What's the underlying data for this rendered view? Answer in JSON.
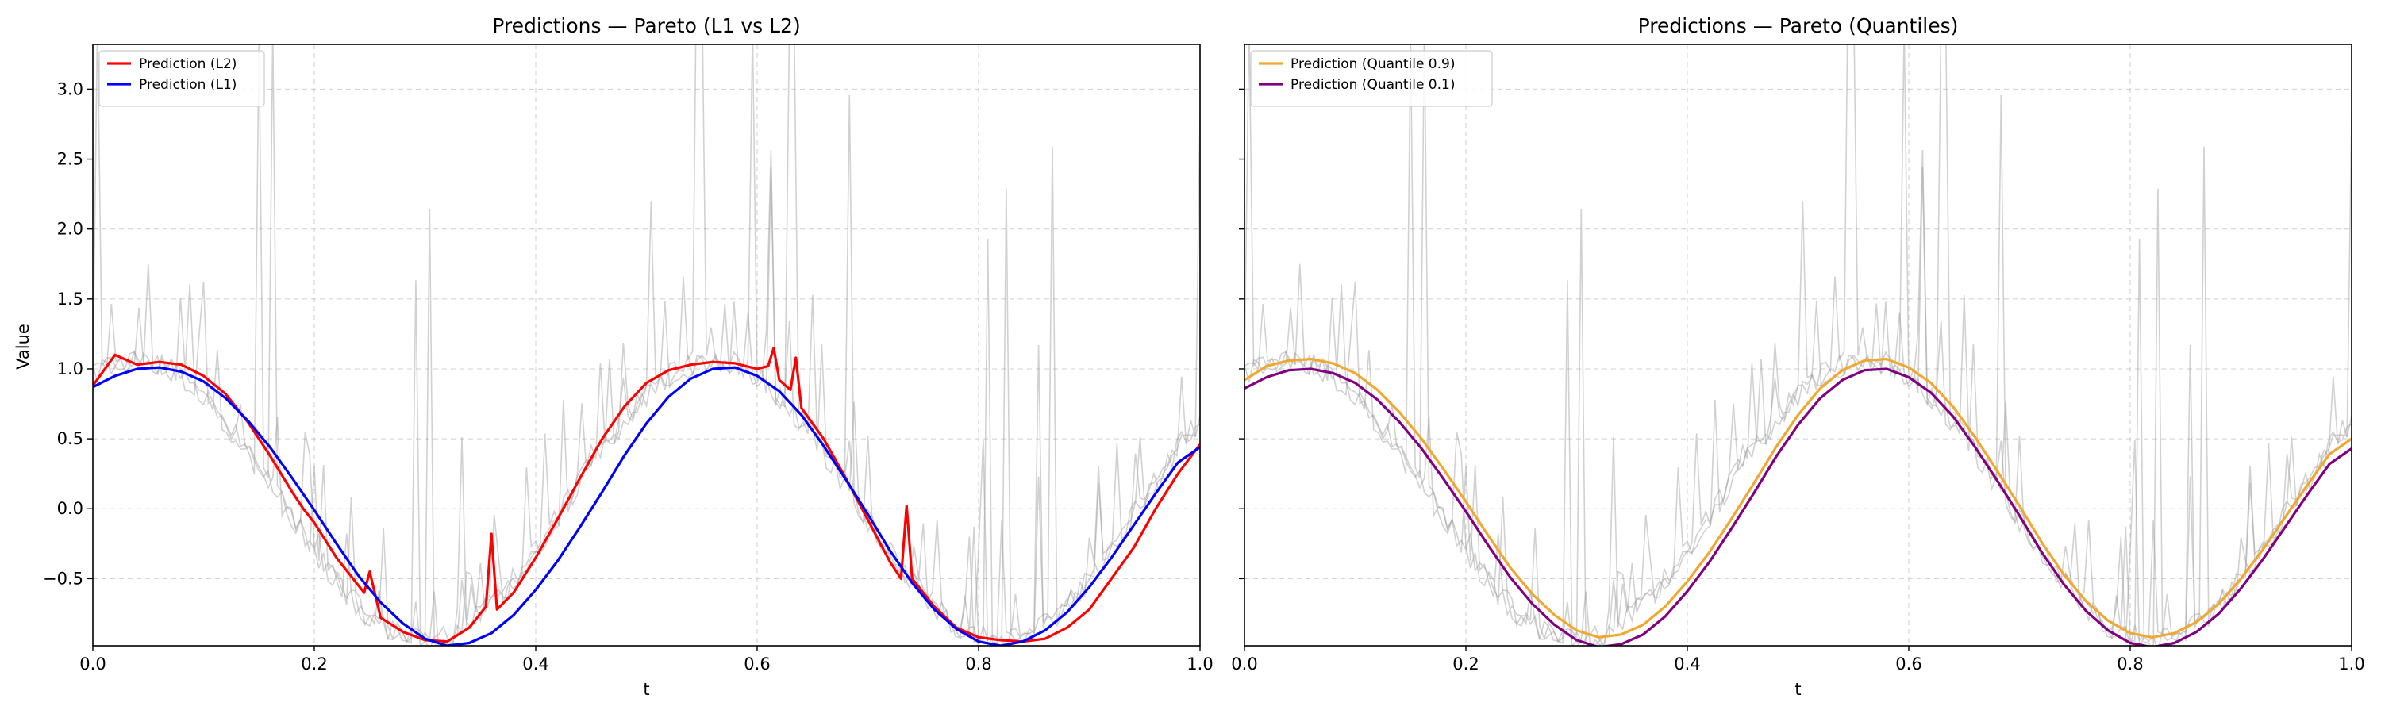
{
  "figure": {
    "ylabel": "Value"
  },
  "chart_data": [
    {
      "type": "line",
      "title": "Predictions — Pareto (L1 vs L2)",
      "xlabel": "t",
      "ylabel": "Value",
      "xlim": [
        0.0,
        1.0
      ],
      "ylim": [
        -0.98,
        3.32
      ],
      "x_ticks": [
        0.0,
        0.2,
        0.4,
        0.6,
        0.8,
        1.0
      ],
      "x_tick_labels": [
        "0.0",
        "0.2",
        "0.4",
        "0.6",
        "0.8",
        "1.0"
      ],
      "y_ticks": [
        -0.5,
        0.0,
        0.5,
        1.0,
        1.5,
        2.0,
        2.5,
        3.0
      ],
      "y_tick_labels": [
        "−0.5",
        "0.0",
        "0.5",
        "1.0",
        "1.5",
        "2.0",
        "2.5",
        "3.0"
      ],
      "grid": true,
      "legend_position": "top-left",
      "series": [
        {
          "name": "Prediction (L2)",
          "color": "#ff0000",
          "x": [
            0.0,
            0.02,
            0.04,
            0.06,
            0.08,
            0.1,
            0.12,
            0.14,
            0.16,
            0.18,
            0.19,
            0.2,
            0.22,
            0.24,
            0.245,
            0.25,
            0.26,
            0.28,
            0.3,
            0.32,
            0.34,
            0.355,
            0.36,
            0.365,
            0.38,
            0.4,
            0.42,
            0.44,
            0.46,
            0.48,
            0.5,
            0.52,
            0.54,
            0.56,
            0.58,
            0.6,
            0.61,
            0.615,
            0.62,
            0.63,
            0.635,
            0.64,
            0.66,
            0.68,
            0.7,
            0.72,
            0.73,
            0.735,
            0.74,
            0.76,
            0.78,
            0.8,
            0.82,
            0.84,
            0.86,
            0.88,
            0.9,
            0.92,
            0.94,
            0.96,
            0.98,
            1.0
          ],
          "y": [
            0.88,
            1.1,
            1.03,
            1.05,
            1.03,
            0.95,
            0.82,
            0.62,
            0.38,
            0.12,
            0.0,
            -0.1,
            -0.35,
            -0.55,
            -0.6,
            -0.45,
            -0.78,
            -0.88,
            -0.94,
            -0.95,
            -0.85,
            -0.7,
            -0.18,
            -0.72,
            -0.6,
            -0.35,
            -0.07,
            0.22,
            0.5,
            0.73,
            0.9,
            0.99,
            1.03,
            1.05,
            1.04,
            1.0,
            1.02,
            1.15,
            0.92,
            0.85,
            1.08,
            0.72,
            0.5,
            0.22,
            -0.08,
            -0.38,
            -0.5,
            0.02,
            -0.5,
            -0.7,
            -0.85,
            -0.92,
            -0.94,
            -0.95,
            -0.93,
            -0.85,
            -0.72,
            -0.5,
            -0.28,
            0.0,
            0.25,
            0.46
          ]
        },
        {
          "name": "Prediction (L1)",
          "color": "#0000ff",
          "x": [
            0.0,
            0.02,
            0.04,
            0.06,
            0.08,
            0.1,
            0.12,
            0.14,
            0.16,
            0.18,
            0.2,
            0.22,
            0.24,
            0.26,
            0.28,
            0.3,
            0.32,
            0.34,
            0.36,
            0.38,
            0.4,
            0.42,
            0.44,
            0.46,
            0.48,
            0.5,
            0.52,
            0.54,
            0.56,
            0.58,
            0.6,
            0.62,
            0.64,
            0.66,
            0.68,
            0.7,
            0.72,
            0.74,
            0.76,
            0.78,
            0.8,
            0.82,
            0.84,
            0.86,
            0.88,
            0.9,
            0.92,
            0.94,
            0.96,
            0.98,
            1.0
          ],
          "y": [
            0.87,
            0.95,
            1.0,
            1.01,
            0.98,
            0.91,
            0.79,
            0.63,
            0.44,
            0.22,
            -0.01,
            -0.25,
            -0.48,
            -0.67,
            -0.82,
            -0.93,
            -0.98,
            -0.96,
            -0.89,
            -0.76,
            -0.58,
            -0.37,
            -0.13,
            0.12,
            0.38,
            0.61,
            0.8,
            0.93,
            1.0,
            1.01,
            0.95,
            0.84,
            0.67,
            0.45,
            0.21,
            -0.04,
            -0.3,
            -0.53,
            -0.72,
            -0.86,
            -0.95,
            -0.98,
            -0.95,
            -0.87,
            -0.74,
            -0.56,
            -0.35,
            -0.12,
            0.11,
            0.33,
            0.44
          ]
        }
      ]
    },
    {
      "type": "line",
      "title": "Predictions — Pareto (Quantiles)",
      "xlabel": "t",
      "xlim": [
        0.0,
        1.0
      ],
      "ylim": [
        -0.98,
        3.32
      ],
      "x_ticks": [
        0.0,
        0.2,
        0.4,
        0.6,
        0.8,
        1.0
      ],
      "x_tick_labels": [
        "0.0",
        "0.2",
        "0.4",
        "0.6",
        "0.8",
        "1.0"
      ],
      "y_ticks": [
        -0.5,
        0.0,
        0.5,
        1.0,
        1.5,
        2.0,
        2.5,
        3.0
      ],
      "y_tick_labels_shown": false,
      "grid": true,
      "legend_position": "top-left",
      "series": [
        {
          "name": "Prediction (Quantile 0.9)",
          "color": "#f0a830",
          "x": [
            0.0,
            0.02,
            0.04,
            0.06,
            0.08,
            0.1,
            0.12,
            0.14,
            0.16,
            0.18,
            0.2,
            0.22,
            0.24,
            0.26,
            0.28,
            0.3,
            0.32,
            0.34,
            0.36,
            0.38,
            0.4,
            0.42,
            0.44,
            0.46,
            0.48,
            0.5,
            0.52,
            0.54,
            0.56,
            0.58,
            0.6,
            0.62,
            0.64,
            0.66,
            0.68,
            0.7,
            0.72,
            0.74,
            0.76,
            0.78,
            0.8,
            0.82,
            0.84,
            0.86,
            0.88,
            0.9,
            0.92,
            0.94,
            0.96,
            0.98,
            1.0
          ],
          "y": [
            0.92,
            1.02,
            1.06,
            1.07,
            1.04,
            0.97,
            0.85,
            0.69,
            0.5,
            0.28,
            0.05,
            -0.19,
            -0.42,
            -0.61,
            -0.76,
            -0.87,
            -0.92,
            -0.9,
            -0.83,
            -0.7,
            -0.52,
            -0.31,
            -0.07,
            0.18,
            0.44,
            0.67,
            0.86,
            0.99,
            1.06,
            1.07,
            1.01,
            0.9,
            0.73,
            0.51,
            0.27,
            0.02,
            -0.24,
            -0.47,
            -0.66,
            -0.8,
            -0.89,
            -0.92,
            -0.89,
            -0.81,
            -0.68,
            -0.5,
            -0.29,
            -0.06,
            0.17,
            0.39,
            0.5
          ]
        },
        {
          "name": "Prediction (Quantile 0.1)",
          "color": "#800080",
          "x": [
            0.0,
            0.02,
            0.04,
            0.06,
            0.08,
            0.1,
            0.12,
            0.14,
            0.16,
            0.18,
            0.2,
            0.22,
            0.24,
            0.26,
            0.28,
            0.3,
            0.32,
            0.34,
            0.36,
            0.38,
            0.4,
            0.42,
            0.44,
            0.46,
            0.48,
            0.5,
            0.52,
            0.54,
            0.56,
            0.58,
            0.6,
            0.62,
            0.64,
            0.66,
            0.68,
            0.7,
            0.72,
            0.74,
            0.76,
            0.78,
            0.8,
            0.82,
            0.84,
            0.86,
            0.88,
            0.9,
            0.92,
            0.94,
            0.96,
            0.98,
            1.0
          ],
          "y": [
            0.86,
            0.94,
            0.99,
            1.0,
            0.97,
            0.9,
            0.78,
            0.62,
            0.43,
            0.21,
            -0.02,
            -0.26,
            -0.49,
            -0.68,
            -0.83,
            -0.94,
            -0.99,
            -0.97,
            -0.9,
            -0.77,
            -0.59,
            -0.38,
            -0.14,
            0.11,
            0.37,
            0.6,
            0.79,
            0.92,
            0.99,
            1.0,
            0.94,
            0.83,
            0.66,
            0.44,
            0.2,
            -0.05,
            -0.31,
            -0.54,
            -0.73,
            -0.87,
            -0.96,
            -0.99,
            -0.96,
            -0.88,
            -0.75,
            -0.57,
            -0.36,
            -0.13,
            0.1,
            0.32,
            0.43
          ]
        }
      ]
    }
  ]
}
